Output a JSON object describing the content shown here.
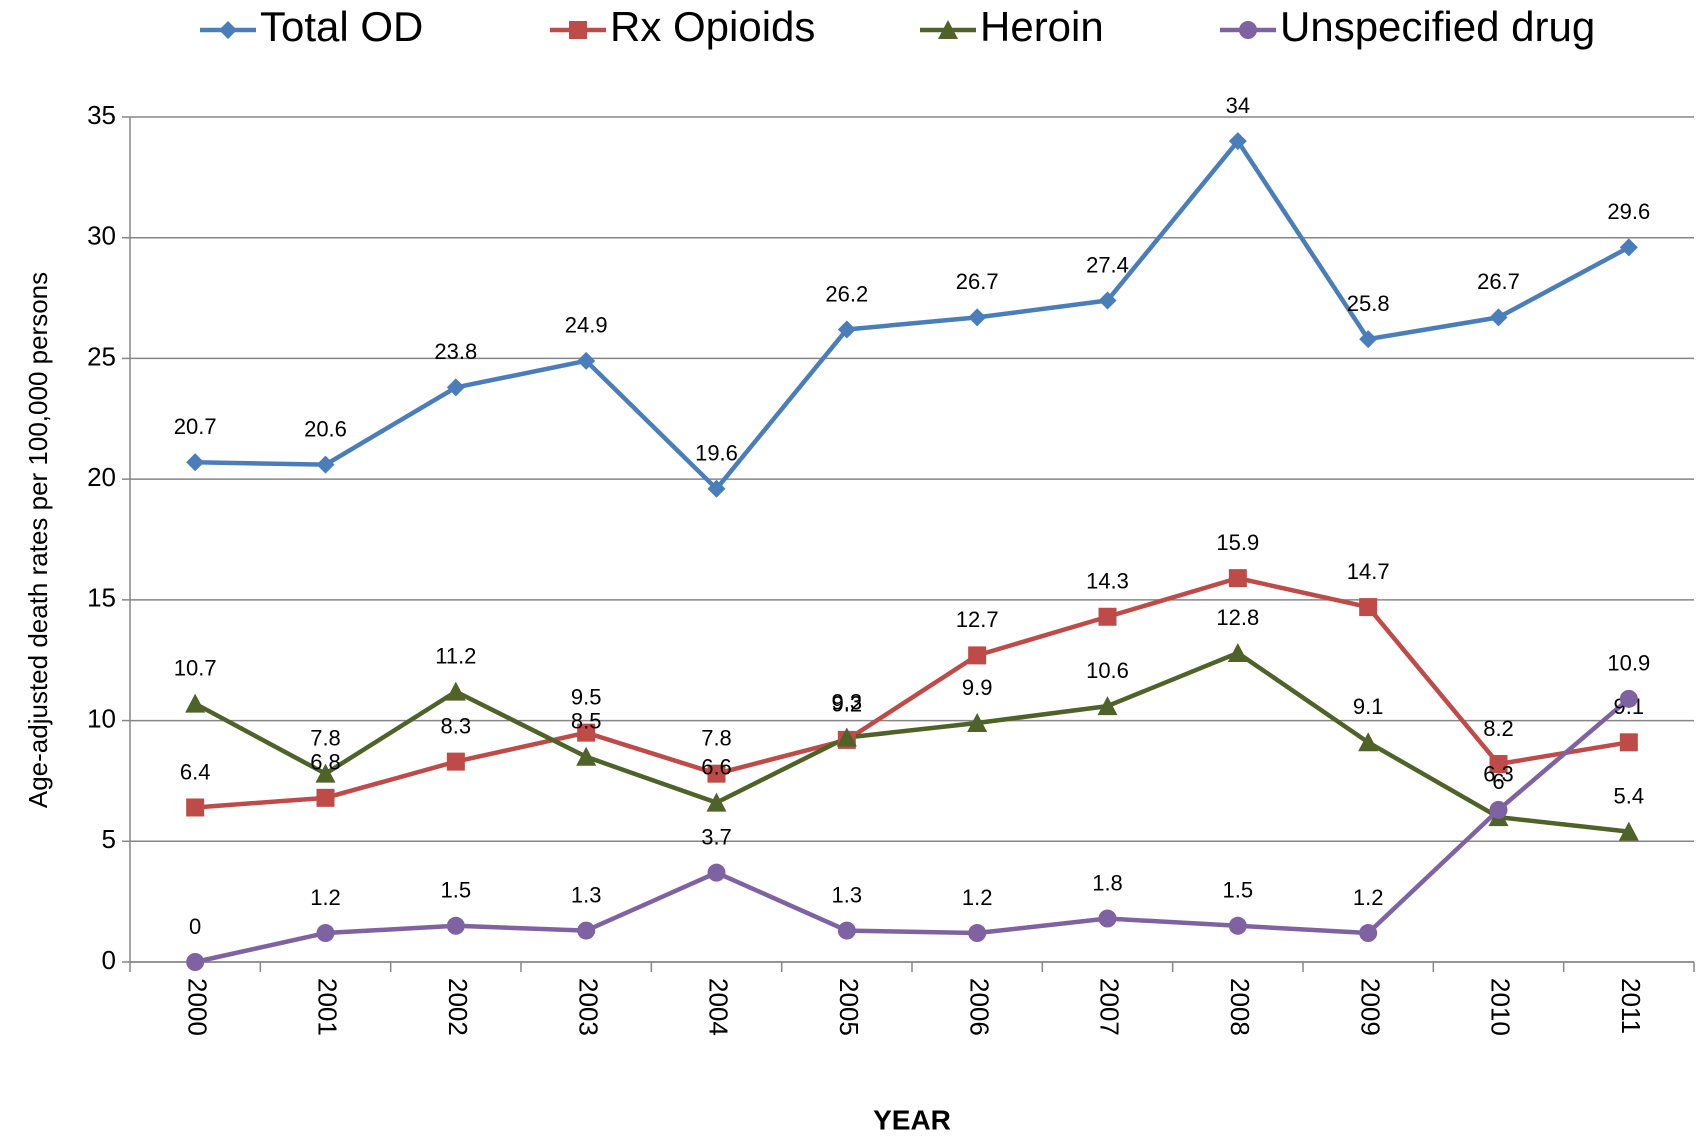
{
  "chart_data": {
    "type": "line",
    "y_label": "Age-adjusted death rates per 100,000 persons",
    "x_label": "YEAR",
    "categories": [
      "2000",
      "2001",
      "2002",
      "2003",
      "2004",
      "2005",
      "2006",
      "2007",
      "2008",
      "2009",
      "2010",
      "2011"
    ],
    "series": [
      {
        "name": "Total OD",
        "color": "#4a7ebb",
        "marker": "diamond",
        "values": [
          20.7,
          20.6,
          23.8,
          24.9,
          19.6,
          26.2,
          26.7,
          27.4,
          34,
          25.8,
          26.7,
          29.6
        ]
      },
      {
        "name": "Rx Opioids",
        "color": "#be4b48",
        "marker": "square",
        "values": [
          6.4,
          6.8,
          8.3,
          9.5,
          7.8,
          9.2,
          12.7,
          14.3,
          15.9,
          14.7,
          8.2,
          9.1
        ]
      },
      {
        "name": "Heroin",
        "color": "#4f6228",
        "marker": "triangle",
        "values": [
          10.7,
          7.8,
          11.2,
          8.5,
          6.6,
          9.3,
          9.9,
          10.6,
          12.8,
          9.1,
          6,
          5.4
        ]
      },
      {
        "name": "Unspecified drug",
        "color": "#7f62a1",
        "marker": "circle",
        "values": [
          0,
          1.2,
          1.5,
          1.3,
          3.7,
          1.3,
          1.2,
          1.8,
          1.5,
          1.2,
          6.3,
          10.9
        ]
      }
    ],
    "ylim": [
      0,
      35
    ],
    "yticks": [
      0,
      5,
      10,
      15,
      20,
      25,
      30,
      35
    ],
    "grid": true,
    "legend": "top"
  }
}
